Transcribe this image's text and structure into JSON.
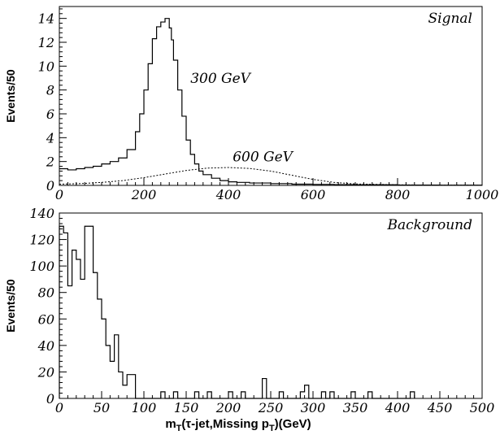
{
  "chart_data": [
    {
      "type": "line",
      "title": "Signal",
      "xlabel": "",
      "ylabel": "Events/50",
      "xlim": [
        0,
        1000
      ],
      "ylim": [
        0,
        15
      ],
      "xticks": [
        0,
        200,
        400,
        600,
        800,
        1000
      ],
      "yticks": [
        0,
        2,
        4,
        6,
        8,
        10,
        12,
        14
      ],
      "grid": false,
      "series": [
        {
          "name": "300 GeV",
          "style": "solid-step",
          "x": [
            0,
            20,
            40,
            60,
            80,
            100,
            120,
            140,
            160,
            180,
            190,
            200,
            210,
            220,
            230,
            240,
            250,
            260,
            265,
            270,
            280,
            290,
            300,
            310,
            320,
            330,
            340,
            360,
            380,
            400,
            420,
            450,
            500,
            550,
            600,
            650,
            700,
            800,
            900,
            1000
          ],
          "y": [
            1.4,
            1.3,
            1.4,
            1.5,
            1.6,
            1.8,
            2.0,
            2.3,
            3.0,
            4.5,
            6.0,
            8.0,
            10.2,
            12.3,
            13.3,
            13.7,
            14.0,
            13.2,
            12.2,
            10.5,
            8.0,
            5.8,
            3.8,
            2.6,
            1.8,
            1.2,
            0.9,
            0.6,
            0.4,
            0.3,
            0.25,
            0.2,
            0.15,
            0.1,
            0.08,
            0.06,
            0.05,
            0.03,
            0.02,
            0.02
          ]
        },
        {
          "name": "600 GeV",
          "style": "dotted",
          "x": [
            0,
            50,
            100,
            150,
            200,
            250,
            300,
            350,
            400,
            450,
            500,
            550,
            600,
            650,
            700,
            800,
            900,
            1000
          ],
          "y": [
            0.1,
            0.15,
            0.25,
            0.4,
            0.65,
            0.95,
            1.25,
            1.45,
            1.5,
            1.42,
            1.2,
            0.85,
            0.5,
            0.25,
            0.12,
            0.05,
            0.02,
            0.01
          ]
        }
      ],
      "annotations": [
        {
          "text": "300 GeV",
          "x": 310,
          "y": 8.6
        },
        {
          "text": "600 GeV",
          "x": 410,
          "y": 2.0
        }
      ]
    },
    {
      "type": "line",
      "title": "Background",
      "xlabel": "m_T(τ-jet,Missing p_T)(GeV)",
      "xlabel_parts": {
        "m": "m",
        "sub_t1": "T",
        "mid": "(τ-jet,Missing p",
        "sub_t2": "T",
        "end": ")(GeV)"
      },
      "ylabel": "Events/50",
      "xlim": [
        0,
        500
      ],
      "ylim": [
        0,
        140
      ],
      "xticks": [
        0,
        50,
        100,
        150,
        200,
        250,
        300,
        350,
        400,
        450,
        500
      ],
      "yticks": [
        0,
        20,
        40,
        60,
        80,
        100,
        120,
        140
      ],
      "grid": false,
      "bin_width": 5,
      "series": [
        {
          "name": "",
          "style": "solid-step",
          "bin_starts": [
            0,
            5,
            10,
            15,
            20,
            25,
            30,
            35,
            40,
            45,
            50,
            55,
            60,
            65,
            70,
            75,
            80,
            85,
            90,
            95,
            100,
            120,
            135,
            160,
            175,
            200,
            215,
            240,
            245,
            260,
            285,
            290,
            310,
            320,
            345,
            365,
            415
          ],
          "values": [
            130,
            125,
            85,
            112,
            105,
            90,
            130,
            130,
            95,
            75,
            60,
            40,
            28,
            48,
            20,
            10,
            18,
            18,
            0,
            0,
            0,
            5,
            5,
            5,
            5,
            5,
            5,
            15,
            0,
            5,
            5,
            10,
            5,
            5,
            5,
            5,
            5
          ]
        }
      ]
    }
  ]
}
